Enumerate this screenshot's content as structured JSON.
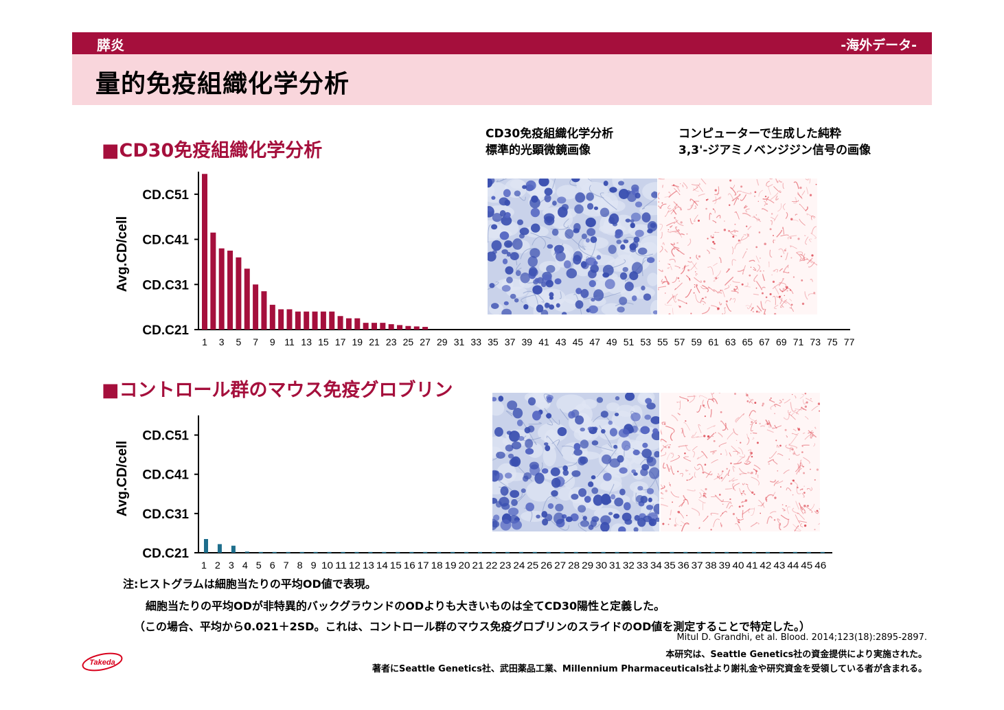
{
  "header": {
    "category": "膵炎",
    "tag": "-海外データ-",
    "title": "量的免疫組織化学分析"
  },
  "section1": {
    "heading": "■CD30免疫組織化学分析",
    "image_caption_left": [
      "CD30免疫組織化学分析",
      "標準的光顕微鏡画像"
    ],
    "image_caption_right": [
      "コンピューターで生成した純粋",
      "3,3'-ジアミノベンジジン信号の画像"
    ]
  },
  "section2": {
    "heading": "■コントロール群のマウス免疫グロブリン"
  },
  "colors": {
    "header_bar": "#a50f3c",
    "title_band": "#f9d6dc",
    "bar_cd30": "#a50f3c",
    "bar_control": "#1e6e8c",
    "stain_blue": "#3a4fb0",
    "dab_red": "#e0505a"
  },
  "chart_data": [
    {
      "type": "bar",
      "ylabel": "Avg.CD/cell",
      "yticks": [
        "CD.C21",
        "CD.C31",
        "CD.C41",
        "CD.C51"
      ],
      "ylim": [
        0.21,
        0.56
      ],
      "xticks": [
        "1",
        "3",
        "5",
        "7",
        "9",
        "11",
        "13",
        "15",
        "17",
        "19",
        "21",
        "23",
        "25",
        "27",
        "29",
        "31",
        "33",
        "35",
        "37",
        "39",
        "41",
        "43",
        "45",
        "47",
        "49",
        "51",
        "53",
        "55",
        "57",
        "59",
        "61",
        "63",
        "65",
        "67",
        "69",
        "71",
        "73",
        "75",
        "77"
      ],
      "x_range": [
        1,
        77
      ],
      "values": [
        0.555,
        0.425,
        0.39,
        0.385,
        0.37,
        0.345,
        0.31,
        0.295,
        0.265,
        0.255,
        0.255,
        0.25,
        0.25,
        0.25,
        0.25,
        0.25,
        0.24,
        0.235,
        0.235,
        0.225,
        0.225,
        0.225,
        0.222,
        0.22,
        0.218,
        0.217,
        0.216
      ],
      "bar_color": "#a50f3c"
    },
    {
      "type": "bar",
      "ylabel": "Avg.CD/cell",
      "yticks": [
        "CD.C21",
        "CD.C31",
        "CD.C41",
        "CD.C51"
      ],
      "ylim": [
        0.21,
        0.56
      ],
      "xticks": [
        "1",
        "2",
        "3",
        "4",
        "5",
        "6",
        "7",
        "8",
        "9",
        "10",
        "11",
        "12",
        "13",
        "14",
        "15",
        "16",
        "17",
        "18",
        "19",
        "20",
        "21",
        "22",
        "23",
        "24",
        "25",
        "26",
        "27",
        "28",
        "29",
        "30",
        "31",
        "32",
        "33",
        "34",
        "35",
        "36",
        "37",
        "38",
        "39",
        "40",
        "41",
        "42",
        "43",
        "44",
        "45",
        "46"
      ],
      "values": [
        0.245,
        0.232,
        0.228,
        0.213,
        0.212,
        0.212,
        0.212,
        0.212,
        0.212,
        0.212,
        0.212,
        0.212,
        0.212,
        0.212,
        0.212,
        0.212,
        0.212,
        0.212,
        0.212,
        0.212,
        0.212,
        0.212,
        0.212,
        0.212,
        0.212,
        0.212,
        0.212,
        0.212,
        0.212,
        0.212,
        0.212,
        0.212,
        0.212,
        0.212,
        0.212,
        0.212,
        0.212,
        0.212,
        0.212,
        0.212,
        0.212,
        0.212,
        0.212,
        0.212,
        0.212,
        0.212
      ],
      "bar_color": "#1e6e8c"
    }
  ],
  "notes": {
    "line1": "注:ヒストグラムは細胞当たりの平均OD値で表現。",
    "line2": "細胞当たりの平均ODが非特異的バックグラウンドのODよりも大きいものは全てCD30陽性と定義した。",
    "line3": "（この場合、平均から0.021＋2SD。これは、コントロール群のマウス免疫グロブリンのスライドのOD値を測定することで特定した。）"
  },
  "references": {
    "citation": "Mitul D. Grandhi, et al. Blood. 2014;123(18):2895-2897.",
    "funding": "本研究は、Seattle Genetics社の資金提供により実施された。",
    "disclosure": "著者にSeattle Genetics社、武田薬品工業、Millennium Pharmaceuticals社より謝礼金や研究資金を受領している者が含まれる。"
  },
  "logo": {
    "text": "Takeda"
  }
}
